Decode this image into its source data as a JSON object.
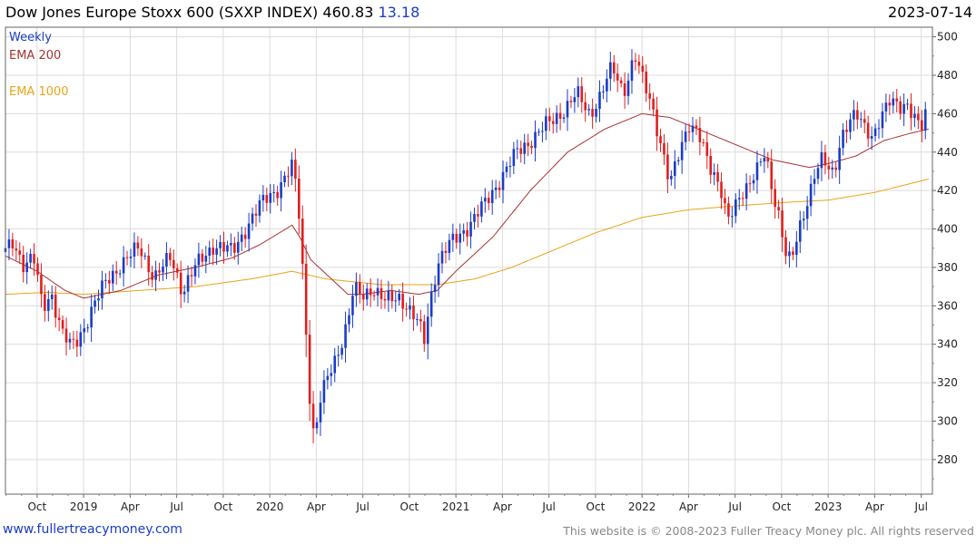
{
  "header": {
    "title": "Dow Jones Europe Stoxx 600 (SXXP INDEX) 460.83",
    "change": "13.18",
    "date": "2023-07-14"
  },
  "footer": {
    "link": "www.fullertreacymoney.com",
    "copyright": "This website is © 2008-2023 Fuller Treacy Money plc. All rights reserved"
  },
  "chart_data": {
    "type": "candlestick",
    "title": "Dow Jones Europe Stoxx 600 (SXXP INDEX)",
    "last_value": 460.83,
    "change": 13.18,
    "period": "Weekly",
    "xlim": [
      2018.58,
      2023.56
    ],
    "ylim": [
      262,
      505
    ],
    "yticks": [
      280,
      300,
      320,
      340,
      360,
      380,
      400,
      420,
      440,
      460,
      480,
      500
    ],
    "xticks": [
      {
        "label": "Oct",
        "t": 2018.75
      },
      {
        "label": "2019",
        "t": 2019.0
      },
      {
        "label": "Apr",
        "t": 2019.25
      },
      {
        "label": "Jul",
        "t": 2019.5
      },
      {
        "label": "Oct",
        "t": 2019.75
      },
      {
        "label": "2020",
        "t": 2020.0
      },
      {
        "label": "Apr",
        "t": 2020.25
      },
      {
        "label": "Jul",
        "t": 2020.5
      },
      {
        "label": "Oct",
        "t": 2020.75
      },
      {
        "label": "2021",
        "t": 2021.0
      },
      {
        "label": "Apr",
        "t": 2021.25
      },
      {
        "label": "Jul",
        "t": 2021.5
      },
      {
        "label": "Oct",
        "t": 2021.75
      },
      {
        "label": "2022",
        "t": 2022.0
      },
      {
        "label": "Apr",
        "t": 2022.25
      },
      {
        "label": "Jul",
        "t": 2022.5
      },
      {
        "label": "Oct",
        "t": 2022.75
      },
      {
        "label": "2023",
        "t": 2023.0
      },
      {
        "label": "Apr",
        "t": 2023.25
      },
      {
        "label": "Jul",
        "t": 2023.5
      }
    ],
    "legend": [
      {
        "label": "Weekly",
        "color": "#1a3cc8"
      },
      {
        "label": "EMA 200",
        "color": "#a83232"
      },
      {
        "label": "EMA 1000",
        "color": "#e8a317"
      }
    ],
    "up_color": "#1a3cc8",
    "down_color": "#e01e1e",
    "price_anchors": [
      [
        2018.58,
        388
      ],
      [
        2018.62,
        392
      ],
      [
        2018.68,
        382
      ],
      [
        2018.73,
        386
      ],
      [
        2018.78,
        358
      ],
      [
        2018.83,
        366
      ],
      [
        2018.88,
        348
      ],
      [
        2018.93,
        338
      ],
      [
        2018.97,
        342
      ],
      [
        2019.05,
        360
      ],
      [
        2019.12,
        372
      ],
      [
        2019.2,
        382
      ],
      [
        2019.3,
        390
      ],
      [
        2019.38,
        375
      ],
      [
        2019.47,
        385
      ],
      [
        2019.53,
        368
      ],
      [
        2019.6,
        380
      ],
      [
        2019.7,
        392
      ],
      [
        2019.8,
        388
      ],
      [
        2019.88,
        402
      ],
      [
        2019.97,
        415
      ],
      [
        2020.05,
        422
      ],
      [
        2020.12,
        432
      ],
      [
        2020.15,
        418
      ],
      [
        2020.18,
        375
      ],
      [
        2020.2,
        338
      ],
      [
        2020.22,
        305
      ],
      [
        2020.24,
        290
      ],
      [
        2020.27,
        310
      ],
      [
        2020.32,
        325
      ],
      [
        2020.38,
        340
      ],
      [
        2020.42,
        352
      ],
      [
        2020.45,
        368
      ],
      [
        2020.5,
        365
      ],
      [
        2020.55,
        370
      ],
      [
        2020.62,
        362
      ],
      [
        2020.7,
        365
      ],
      [
        2020.75,
        358
      ],
      [
        2020.8,
        350
      ],
      [
        2020.83,
        342
      ],
      [
        2020.86,
        362
      ],
      [
        2020.9,
        382
      ],
      [
        2020.95,
        390
      ],
      [
        2021.05,
        400
      ],
      [
        2021.15,
        412
      ],
      [
        2021.25,
        428
      ],
      [
        2021.33,
        440
      ],
      [
        2021.42,
        448
      ],
      [
        2021.5,
        455
      ],
      [
        2021.58,
        462
      ],
      [
        2021.65,
        470
      ],
      [
        2021.72,
        460
      ],
      [
        2021.78,
        470
      ],
      [
        2021.84,
        484
      ],
      [
        2021.9,
        472
      ],
      [
        2021.93,
        480
      ],
      [
        2021.96,
        490
      ],
      [
        2022.0,
        478
      ],
      [
        2022.05,
        466
      ],
      [
        2022.1,
        445
      ],
      [
        2022.15,
        422
      ],
      [
        2022.2,
        440
      ],
      [
        2022.25,
        456
      ],
      [
        2022.3,
        450
      ],
      [
        2022.36,
        432
      ],
      [
        2022.42,
        424
      ],
      [
        2022.46,
        405
      ],
      [
        2022.5,
        410
      ],
      [
        2022.55,
        420
      ],
      [
        2022.6,
        430
      ],
      [
        2022.66,
        438
      ],
      [
        2022.7,
        418
      ],
      [
        2022.74,
        406
      ],
      [
        2022.77,
        390
      ],
      [
        2022.8,
        384
      ],
      [
        2022.84,
        396
      ],
      [
        2022.88,
        410
      ],
      [
        2022.93,
        432
      ],
      [
        2022.97,
        438
      ],
      [
        2023.0,
        430
      ],
      [
        2023.03,
        426
      ],
      [
        2023.07,
        448
      ],
      [
        2023.11,
        458
      ],
      [
        2023.15,
        460
      ],
      [
        2023.2,
        450
      ],
      [
        2023.24,
        448
      ],
      [
        2023.28,
        460
      ],
      [
        2023.33,
        466
      ],
      [
        2023.38,
        462
      ],
      [
        2023.43,
        466
      ],
      [
        2023.47,
        458
      ],
      [
        2023.5,
        452
      ],
      [
        2023.53,
        460
      ],
      [
        2023.54,
        461
      ]
    ],
    "ema200_anchors": [
      [
        2018.58,
        386
      ],
      [
        2018.75,
        378
      ],
      [
        2018.9,
        368
      ],
      [
        2019.0,
        364
      ],
      [
        2019.2,
        368
      ],
      [
        2019.4,
        376
      ],
      [
        2019.6,
        380
      ],
      [
        2019.8,
        385
      ],
      [
        2019.95,
        392
      ],
      [
        2020.12,
        402
      ],
      [
        2020.16,
        396
      ],
      [
        2020.22,
        384
      ],
      [
        2020.32,
        375
      ],
      [
        2020.42,
        366
      ],
      [
        2020.5,
        366
      ],
      [
        2020.65,
        368
      ],
      [
        2020.8,
        366
      ],
      [
        2020.9,
        368
      ],
      [
        2021.0,
        378
      ],
      [
        2021.2,
        396
      ],
      [
        2021.4,
        420
      ],
      [
        2021.6,
        440
      ],
      [
        2021.8,
        452
      ],
      [
        2022.0,
        460
      ],
      [
        2022.15,
        458
      ],
      [
        2022.3,
        452
      ],
      [
        2022.45,
        446
      ],
      [
        2022.6,
        440
      ],
      [
        2022.7,
        436
      ],
      [
        2022.8,
        434
      ],
      [
        2022.9,
        432
      ],
      [
        2023.0,
        434
      ],
      [
        2023.15,
        438
      ],
      [
        2023.3,
        446
      ],
      [
        2023.45,
        450
      ],
      [
        2023.54,
        452
      ]
    ],
    "ema1000_anchors": [
      [
        2018.58,
        366
      ],
      [
        2018.8,
        367
      ],
      [
        2019.0,
        366
      ],
      [
        2019.3,
        368
      ],
      [
        2019.6,
        370
      ],
      [
        2019.9,
        374
      ],
      [
        2020.12,
        378
      ],
      [
        2020.3,
        374
      ],
      [
        2020.6,
        371
      ],
      [
        2020.9,
        371
      ],
      [
        2021.1,
        374
      ],
      [
        2021.3,
        380
      ],
      [
        2021.5,
        388
      ],
      [
        2021.75,
        398
      ],
      [
        2022.0,
        406
      ],
      [
        2022.25,
        410
      ],
      [
        2022.5,
        412
      ],
      [
        2022.8,
        414
      ],
      [
        2023.0,
        415
      ],
      [
        2023.25,
        419
      ],
      [
        2023.54,
        426
      ]
    ]
  }
}
